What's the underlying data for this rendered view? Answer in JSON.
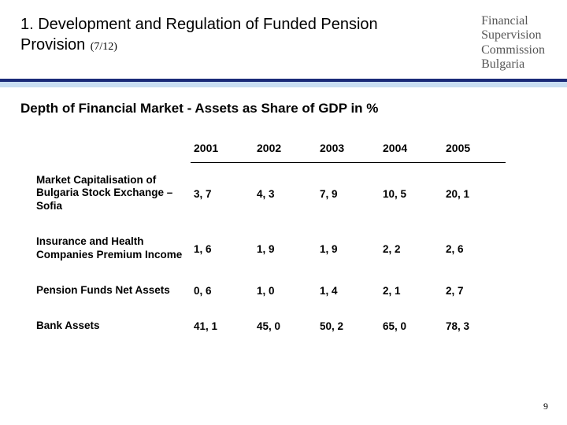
{
  "header": {
    "title": "1. Development and Regulation of Funded Pension Provision",
    "pager": "(7/12)",
    "org_lines": [
      "Financial",
      "Supervision",
      "Commission",
      "Bulgaria"
    ]
  },
  "subtitle": "Depth of Financial Market - Assets as Share of GDP in %",
  "table": {
    "years": [
      "2001",
      "2002",
      "2003",
      "2004",
      "2005"
    ],
    "rows": [
      {
        "label": "Market Capitalisation of Bulgaria Stock Exchange – Sofia",
        "values": [
          "3, 7",
          "4, 3",
          "7, 9",
          "10, 5",
          "20, 1"
        ]
      },
      {
        "label": "Insurance and Health Companies Premium Income",
        "values": [
          "1, 6",
          "1, 9",
          "1, 9",
          "2, 2",
          "2, 6"
        ]
      },
      {
        "label": "Pension Funds Net Assets",
        "values": [
          "0, 6",
          "1, 0",
          "1, 4",
          "2, 1",
          "2, 7"
        ]
      },
      {
        "label": "Bank Assets",
        "values": [
          "41, 1",
          "45, 0",
          "50, 2",
          "65, 0",
          "78, 3"
        ]
      }
    ]
  },
  "style": {
    "rule_dark": "#1a2a78",
    "rule_light": "#c9def2",
    "header_fontsize": 20,
    "subtitle_fontsize": 17,
    "cell_fontsize": 13.5,
    "year_fontsize": 14
  },
  "page_number": "9"
}
